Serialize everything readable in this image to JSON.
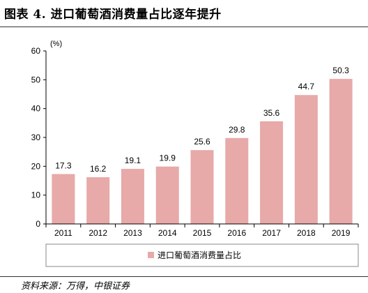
{
  "title": "图表 4. 进口葡萄酒消费量占比逐年提升",
  "source": "资料来源：万得，中银证券",
  "chart_data": {
    "type": "bar",
    "unit_label": "(%)",
    "categories": [
      "2011",
      "2012",
      "2013",
      "2014",
      "2015",
      "2016",
      "2017",
      "2018",
      "2019"
    ],
    "series": [
      {
        "name": "进口葡萄酒消费量占比",
        "values": [
          17.3,
          16.2,
          19.1,
          19.9,
          25.6,
          29.8,
          35.6,
          44.7,
          50.3
        ],
        "labels": [
          "17.3",
          "16.2",
          "19.1",
          "19.9",
          "25.6",
          "29.8",
          "35.6",
          "44.7",
          "50.3"
        ],
        "color": "#e8a9a9"
      }
    ],
    "ylim": [
      0,
      60
    ],
    "yticks": [
      0,
      10,
      20,
      30,
      40,
      50,
      60
    ],
    "grid": false,
    "legend_position": "bottom"
  }
}
